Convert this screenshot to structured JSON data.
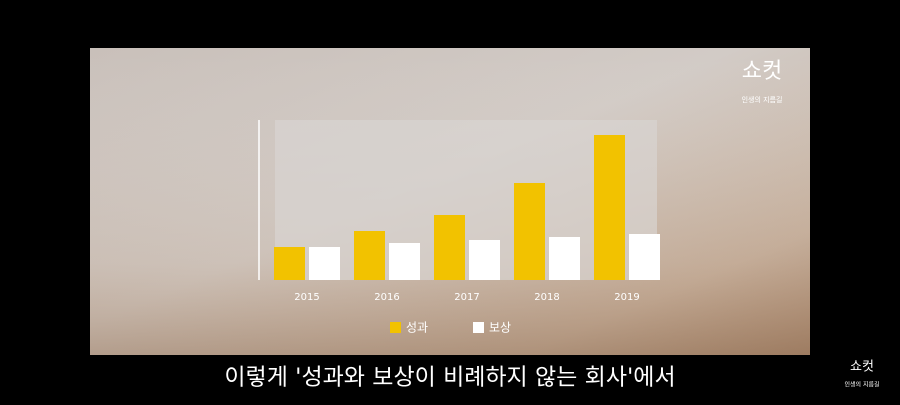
{
  "chart_data": {
    "type": "bar",
    "categories": [
      "2015",
      "2016",
      "2017",
      "2018",
      "2019"
    ],
    "series": [
      {
        "name": "성과",
        "color": "#f2c200",
        "values": [
          33,
          49,
          65,
          97,
          145
        ]
      },
      {
        "name": "보상",
        "color": "#ffffff",
        "values": [
          33,
          37,
          40,
          43,
          46
        ]
      }
    ],
    "ylim": [
      0,
      160
    ]
  },
  "logo": {
    "title": "쇼컷",
    "tagline": "인생의 지름길"
  },
  "caption": "이렇게 '성과와 보상이 비례하지 않는 회사'에서"
}
